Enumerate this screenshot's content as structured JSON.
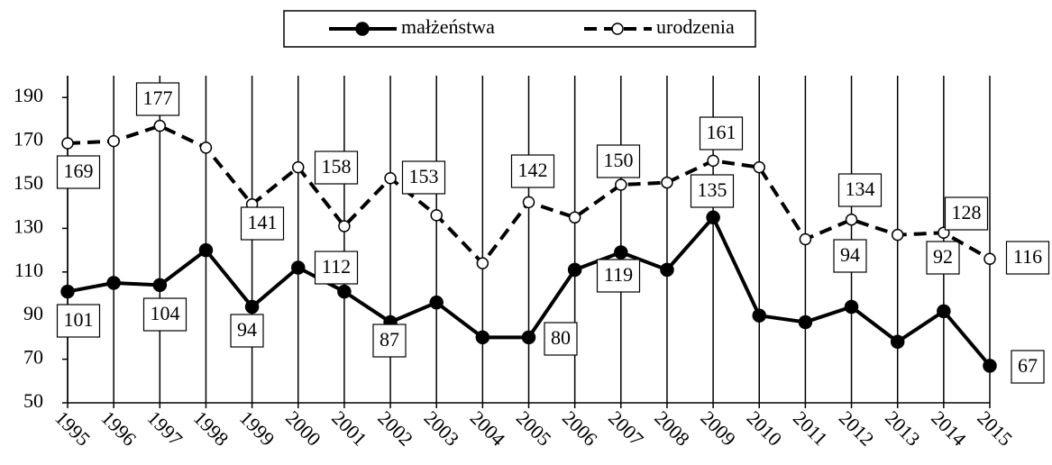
{
  "chart_data": {
    "type": "line",
    "x": [
      "1995",
      "1996",
      "1997",
      "1998",
      "1999",
      "2000",
      "2001",
      "2002",
      "2003",
      "2004",
      "2005",
      "2006",
      "2007",
      "2008",
      "2009",
      "2010",
      "2011",
      "2012",
      "2013",
      "2014",
      "2015"
    ],
    "series": [
      {
        "name": "małżeństwa",
        "color": "#000000",
        "dash": false,
        "marker": "filled",
        "values": [
          101,
          105,
          104,
          120,
          94,
          112,
          101,
          87,
          96,
          80,
          80,
          111,
          119,
          111,
          135,
          90,
          87,
          94,
          78,
          92,
          67
        ],
        "value_labels": [
          "101",
          null,
          "104",
          null,
          "94",
          "112",
          null,
          "87",
          null,
          null,
          "80",
          null,
          "119",
          null,
          "135",
          null,
          null,
          "94",
          null,
          "92",
          "67"
        ]
      },
      {
        "name": "urodzenia",
        "color": "#000000",
        "dash": true,
        "marker": "open",
        "values": [
          169,
          170,
          177,
          167,
          141,
          158,
          131,
          153,
          136,
          114,
          142,
          135,
          150,
          151,
          161,
          158,
          125,
          134,
          127,
          128,
          116
        ],
        "value_labels": [
          "169",
          null,
          "177",
          null,
          "141",
          "158",
          null,
          "153",
          null,
          null,
          "142",
          null,
          "150",
          null,
          "161",
          null,
          null,
          "134",
          null,
          "128",
          "116"
        ]
      }
    ],
    "ylim": [
      50,
      200
    ],
    "yticks": [
      50,
      70,
      90,
      110,
      130,
      150,
      170,
      190
    ],
    "grid": true,
    "legend": "top"
  }
}
